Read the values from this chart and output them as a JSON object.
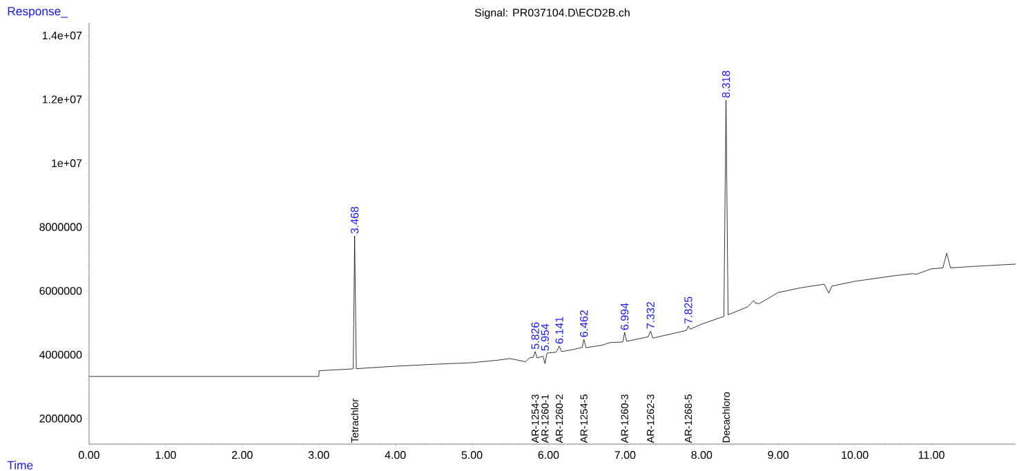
{
  "chart_data": {
    "type": "line",
    "title": "Signal: PR037104.D\\ECD2B.ch",
    "xlabel": "Time",
    "ylabel": "Response_",
    "xlim": [
      0,
      12.1
    ],
    "ylim": [
      1200000,
      14400000
    ],
    "xticks": [
      {
        "value": 0,
        "label": "0.00"
      },
      {
        "value": 1,
        "label": "1.00"
      },
      {
        "value": 2,
        "label": "2.00"
      },
      {
        "value": 3,
        "label": "3.00"
      },
      {
        "value": 4,
        "label": "4.00"
      },
      {
        "value": 5,
        "label": "5.00"
      },
      {
        "value": 6,
        "label": "6.00"
      },
      {
        "value": 7,
        "label": "7.00"
      },
      {
        "value": 8,
        "label": "8.00"
      },
      {
        "value": 9,
        "label": "9.00"
      },
      {
        "value": 10,
        "label": "10.00"
      },
      {
        "value": 11,
        "label": "11.00"
      }
    ],
    "yticks": [
      2000000,
      4000000,
      6000000,
      8000000,
      {
        "value": 10000000,
        "label": "1e+07"
      },
      {
        "value": 12000000,
        "label": "1.2e+07"
      },
      {
        "value": 14000000,
        "label": "1.4e+07"
      }
    ],
    "series": [
      {
        "color": "#000000",
        "x": [
          0,
          3.0,
          3.005,
          3.4,
          3.45,
          3.468,
          3.49,
          3.6,
          4.0,
          4.5,
          5.0,
          5.3,
          5.5,
          5.7,
          5.75,
          5.8,
          5.826,
          5.85,
          5.93,
          5.954,
          5.98,
          6.1,
          6.141,
          6.17,
          6.3,
          6.44,
          6.462,
          6.49,
          6.7,
          6.8,
          6.97,
          6.994,
          7.02,
          7.3,
          7.332,
          7.36,
          7.6,
          7.8,
          7.825,
          7.85,
          8.0,
          8.29,
          8.318,
          8.345,
          8.6,
          8.68,
          8.7,
          8.75,
          9.0,
          9.3,
          9.6,
          9.66,
          9.7,
          10.0,
          10.5,
          10.75,
          10.8,
          11.0,
          11.15,
          11.2,
          11.25,
          11.5,
          12.1
        ],
        "values": [
          3320000,
          3320000,
          3500000,
          3550000,
          3560000,
          7720000,
          3560000,
          3580000,
          3640000,
          3700000,
          3750000,
          3820000,
          3880000,
          3780000,
          3900000,
          3920000,
          4100000,
          3900000,
          3950000,
          3720000,
          4050000,
          4080000,
          4270000,
          4100000,
          4150000,
          4230000,
          4480000,
          4220000,
          4300000,
          4380000,
          4400000,
          4700000,
          4420000,
          4560000,
          4740000,
          4520000,
          4650000,
          4760000,
          4900000,
          4800000,
          4960000,
          5200000,
          11980000,
          5250000,
          5500000,
          5700000,
          5620000,
          5600000,
          5950000,
          6100000,
          6210000,
          5930000,
          6150000,
          6300000,
          6470000,
          6540000,
          6520000,
          6690000,
          6720000,
          7180000,
          6720000,
          6760000,
          6840000
        ]
      }
    ],
    "annotations": [
      {
        "text": "3.468",
        "x": 3.468,
        "y": 7720000
      },
      {
        "text": "5.826",
        "x": 5.826,
        "y": 4100000
      },
      {
        "text": "5.954",
        "x": 5.954,
        "y": 4050000
      },
      {
        "text": "6.141",
        "x": 6.141,
        "y": 4270000
      },
      {
        "text": "6.462",
        "x": 6.462,
        "y": 4480000
      },
      {
        "text": "6.994",
        "x": 6.994,
        "y": 4700000
      },
      {
        "text": "7.332",
        "x": 7.332,
        "y": 4740000
      },
      {
        "text": "7.825",
        "x": 7.825,
        "y": 4900000
      },
      {
        "text": "8.318",
        "x": 8.318,
        "y": 11980000
      },
      "Tetrachlor",
      "AR-1254-3",
      "AR-1260-1",
      "AR-1260-2",
      "AR-1254-5",
      "AR-1260-3",
      "AR-1262-3",
      "AR-1268-5",
      "Decachloro"
    ]
  }
}
